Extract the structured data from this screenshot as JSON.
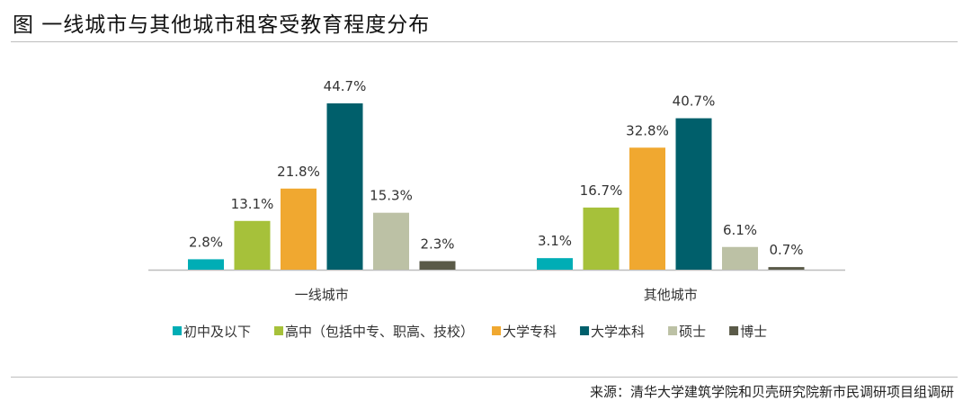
{
  "title": "图  一线城市与其他城市租客受教育程度分布",
  "source": "来源：清华大学建筑学院和贝壳研究院新市民调研项目组调研",
  "chart_data": {
    "type": "bar",
    "title": "图  一线城市与其他城市租客受教育程度分布",
    "categories": [
      "一线城市",
      "其他城市"
    ],
    "series": [
      {
        "name": "初中及以下",
        "color": "#00adb5",
        "values": [
          2.8,
          3.1
        ]
      },
      {
        "name": "高中（包括中专、职高、技校）",
        "color": "#a6c13a",
        "values": [
          13.1,
          16.7
        ]
      },
      {
        "name": "大学专科",
        "color": "#f0a830",
        "values": [
          21.8,
          32.8
        ]
      },
      {
        "name": "大学本科",
        "color": "#005f6b",
        "values": [
          44.7,
          40.7
        ]
      },
      {
        "name": "硕士",
        "color": "#bcc1a5",
        "values": [
          15.3,
          6.1
        ]
      },
      {
        "name": "博士",
        "color": "#5a5a48",
        "values": [
          2.3,
          0.7
        ]
      }
    ],
    "unit": "%",
    "ylim": [
      0,
      45
    ],
    "grid": false,
    "legend": "bottom"
  }
}
